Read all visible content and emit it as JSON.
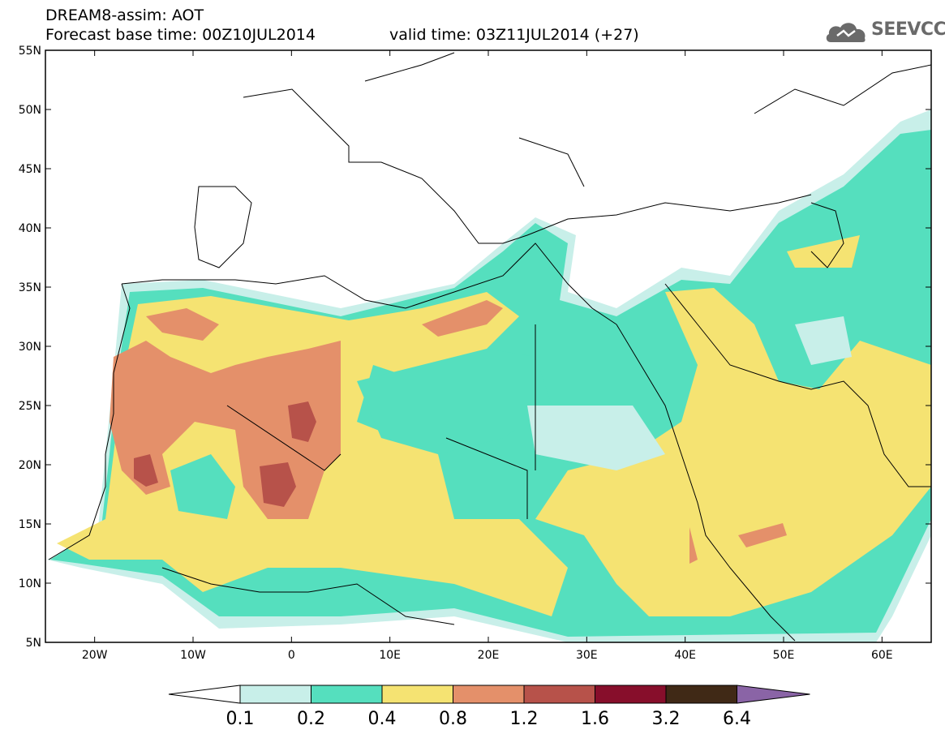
{
  "header": {
    "title_line1": "DREAM8-assim: AOT",
    "base_time": "Forecast base time: 00Z10JUL2014",
    "valid_time": "valid time: 03Z11JUL2014 (+27)"
  },
  "logo": {
    "text": "SEEVCCC",
    "icon": "cloud-icon"
  },
  "map": {
    "lon_range": [
      -25,
      65
    ],
    "lat_range": [
      5,
      55
    ],
    "lat_ticks": [
      {
        "value": 55,
        "label": "55N"
      },
      {
        "value": 50,
        "label": "50N"
      },
      {
        "value": 45,
        "label": "45N"
      },
      {
        "value": 40,
        "label": "40N"
      },
      {
        "value": 35,
        "label": "35N"
      },
      {
        "value": 30,
        "label": "30N"
      },
      {
        "value": 25,
        "label": "25N"
      },
      {
        "value": 20,
        "label": "20N"
      },
      {
        "value": 15,
        "label": "15N"
      },
      {
        "value": 10,
        "label": "10N"
      },
      {
        "value": 5,
        "label": "5N"
      }
    ],
    "lon_ticks": [
      {
        "value": -20,
        "label": "20W"
      },
      {
        "value": -10,
        "label": "10W"
      },
      {
        "value": 0,
        "label": "0"
      },
      {
        "value": 10,
        "label": "10E"
      },
      {
        "value": 20,
        "label": "20E"
      },
      {
        "value": 30,
        "label": "30E"
      },
      {
        "value": 40,
        "label": "40E"
      },
      {
        "value": 50,
        "label": "50E"
      },
      {
        "value": 60,
        "label": "60E"
      }
    ]
  },
  "colorbar": {
    "thresholds": [
      "0.1",
      "0.2",
      "0.4",
      "0.8",
      "1.2",
      "1.6",
      "3.2",
      "6.4"
    ],
    "colors": [
      "#ffffff",
      "#c8efe9",
      "#55dfbe",
      "#f5e372",
      "#e4906a",
      "#b7524a",
      "#870e2b",
      "#402916",
      "#8a64a6"
    ]
  }
}
